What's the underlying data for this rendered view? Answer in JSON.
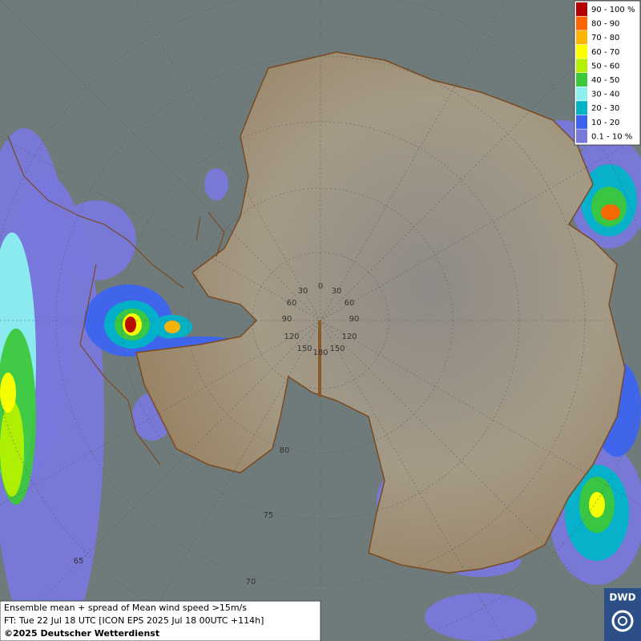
{
  "legend": {
    "entries": [
      {
        "label": "90 - 100 %",
        "color": "#b40000"
      },
      {
        "label": "80 - 90",
        "color": "#ff6400"
      },
      {
        "label": "70 - 80",
        "color": "#ffb400"
      },
      {
        "label": "60 - 70",
        "color": "#ffff00"
      },
      {
        "label": "50 - 60",
        "color": "#b4f000"
      },
      {
        "label": "40 - 50",
        "color": "#3cc83c"
      },
      {
        "label": "30 - 40",
        "color": "#8cf0f0"
      },
      {
        "label": "20 - 30",
        "color": "#00b4c8"
      },
      {
        "label": "10 - 20",
        "color": "#3c64f0"
      },
      {
        "label": "0.1 - 10 %",
        "color": "#7878dc"
      }
    ]
  },
  "caption": {
    "lines": [
      "Ensemble mean + spread of Mean wind speed >15m/s",
      "FT: Tue 22 Jul 18 UTC [ICON EPS 2025 Jul 18 00UTC +114h]",
      "©2025 Deutscher Wetterdienst"
    ]
  },
  "grid_labels": {
    "longitude": [
      "0",
      "30",
      "30",
      "60",
      "60",
      "90",
      "90",
      "120",
      "120",
      "150",
      "150",
      "180"
    ],
    "latitude": [
      "80",
      "75",
      "70",
      "65"
    ]
  },
  "logo": "DWD"
}
